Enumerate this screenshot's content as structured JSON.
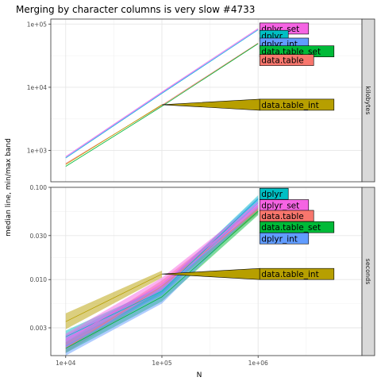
{
  "chart_data": {
    "type": "line",
    "title": "Merging by character columns is very slow #4733",
    "xlabel": "N",
    "ylabel": "median line, min/max band",
    "x_scale": "log10",
    "x_ticks": [
      {
        "value": 10000,
        "label": "1e+04"
      },
      {
        "value": 100000,
        "label": "1e+05"
      },
      {
        "value": 1000000,
        "label": "1e+06"
      }
    ],
    "xlim": [
      7000,
      12000000
    ],
    "colors": {
      "data.table": "#F8766D",
      "data.table_int": "#B79F00",
      "data.table_set": "#00BA38",
      "dplyr": "#00BFC4",
      "dplyr_int": "#619CFF",
      "dplyr_set": "#F564E3"
    },
    "panels": [
      {
        "strip": "kilobytes",
        "y_scale": "log10",
        "ylim": [
          320,
          120000
        ],
        "y_ticks": [
          {
            "value": 1000,
            "label": "1e+03"
          },
          {
            "value": 10000,
            "label": "1e+04"
          },
          {
            "value": 100000,
            "label": "1e+05"
          }
        ],
        "series": [
          {
            "name": "data.table",
            "x": [
              10000,
              100000,
              1000000
            ],
            "median": [
              620,
              5200,
              50000
            ]
          },
          {
            "name": "data.table_int",
            "x": [
              10000,
              100000
            ],
            "median": [
              600,
              5300
            ]
          },
          {
            "name": "data.table_set",
            "x": [
              10000,
              100000,
              1000000
            ],
            "median": [
              560,
              5000,
              49000
            ]
          },
          {
            "name": "dplyr",
            "x": [
              10000,
              100000,
              1000000
            ],
            "median": [
              760,
              8000,
              81000
            ]
          },
          {
            "name": "dplyr_int",
            "x": [
              10000,
              100000,
              1000000
            ],
            "median": [
              770,
              8100,
              82000
            ]
          },
          {
            "name": "dplyr_set",
            "x": [
              10000,
              100000,
              1000000
            ],
            "median": [
              800,
              8400,
              85000
            ]
          }
        ],
        "labels": [
          {
            "series": "dplyr_set",
            "text": "dplyr_set",
            "x": 1000000,
            "y": 85000
          },
          {
            "series": "dplyr",
            "text": "dplyr",
            "x": 1000000,
            "y": 65000
          },
          {
            "series": "dplyr_int",
            "text": "dplyr_int",
            "x": 1000000,
            "y": 49000
          },
          {
            "series": "data.table_set",
            "text": "data.table_set",
            "x": 1000000,
            "y": 37000
          },
          {
            "series": "data.table",
            "text": "data.table",
            "x": 1000000,
            "y": 27000
          },
          {
            "series": "data.table_int",
            "text": "data.table_int",
            "x": 1000000,
            "y": 5300
          }
        ]
      },
      {
        "strip": "seconds",
        "y_scale": "log10",
        "ylim": [
          0.0015,
          0.1
        ],
        "y_ticks": [
          {
            "value": 0.003,
            "label": "0.003"
          },
          {
            "value": 0.01,
            "label": "0.010"
          },
          {
            "value": 0.03,
            "label": "0.030"
          },
          {
            "value": 0.1,
            "label": "0.100"
          }
        ],
        "series": [
          {
            "name": "data.table",
            "x": [
              10000,
              100000,
              1000000
            ],
            "median": [
              0.0018,
              0.0085,
              0.058
            ],
            "min": [
              0.0016,
              0.0072,
              0.052
            ],
            "max": [
              0.0021,
              0.0098,
              0.065
            ]
          },
          {
            "name": "data.table_int",
            "x": [
              10000,
              100000
            ],
            "median": [
              0.0035,
              0.0115
            ],
            "min": [
              0.0029,
              0.0105
            ],
            "max": [
              0.0043,
              0.0125
            ]
          },
          {
            "name": "data.table_set",
            "x": [
              10000,
              100000,
              1000000
            ],
            "median": [
              0.0018,
              0.0065,
              0.055
            ],
            "min": [
              0.0016,
              0.0058,
              0.05
            ],
            "max": [
              0.0021,
              0.0075,
              0.061
            ]
          },
          {
            "name": "dplyr",
            "x": [
              10000,
              100000,
              1000000
            ],
            "median": [
              0.0024,
              0.0075,
              0.075
            ],
            "min": [
              0.0021,
              0.0068,
              0.07
            ],
            "max": [
              0.0028,
              0.0083,
              0.082
            ]
          },
          {
            "name": "dplyr_int",
            "x": [
              10000,
              100000,
              1000000
            ],
            "median": [
              0.0019,
              0.007,
              0.068
            ],
            "min": [
              0.0015,
              0.0055,
              0.06
            ],
            "max": [
              0.0025,
              0.0088,
              0.078
            ]
          },
          {
            "name": "dplyr_set",
            "x": [
              10000,
              100000,
              1000000
            ],
            "median": [
              0.0022,
              0.009,
              0.063
            ],
            "min": [
              0.0018,
              0.0078,
              0.057
            ],
            "max": [
              0.0026,
              0.0105,
              0.07
            ]
          }
        ],
        "labels": [
          {
            "series": "dplyr",
            "text": "dplyr",
            "x": 1000000,
            "y": 0.085
          },
          {
            "series": "dplyr_set",
            "text": "dplyr_set",
            "x": 1000000,
            "y": 0.064
          },
          {
            "series": "data.table",
            "text": "data.table",
            "x": 1000000,
            "y": 0.049
          },
          {
            "series": "data.table_set",
            "text": "data.table_set",
            "x": 1000000,
            "y": 0.037
          },
          {
            "series": "dplyr_int",
            "text": "dplyr_int",
            "x": 1000000,
            "y": 0.028
          },
          {
            "series": "data.table_int",
            "text": "data.table_int",
            "x": 1000000,
            "y": 0.0115
          }
        ]
      }
    ],
    "grid": true,
    "legend": "none (direct labels)"
  }
}
